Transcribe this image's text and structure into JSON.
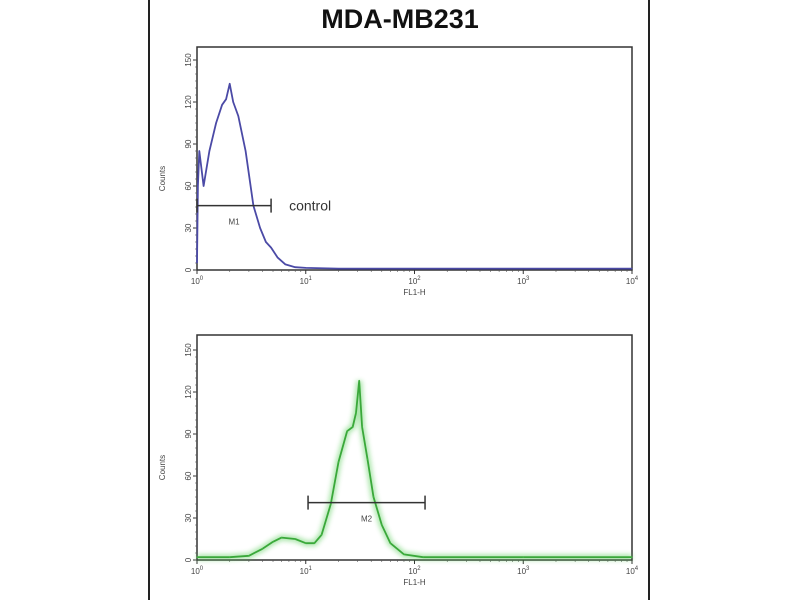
{
  "title": "MDA-MB231",
  "colors": {
    "control": "#4b4aa6",
    "sample": "#4cc94c",
    "axis": "#333333"
  },
  "chart_data": [
    {
      "type": "line",
      "xscale": "log",
      "xlim": [
        1,
        10000
      ],
      "ylim": [
        0,
        150
      ],
      "xlabel": "FL1-H",
      "ylabel": "Counts",
      "xticks": [
        "10^0",
        "10^1",
        "10^2",
        "10^3",
        "10^4"
      ],
      "yticks": [
        0,
        30,
        60,
        90,
        120,
        150
      ],
      "series": [
        {
          "name": "control",
          "color": "#4b4aa6",
          "points": [
            [
              1,
              5
            ],
            [
              1.02,
              60
            ],
            [
              1.05,
              85
            ],
            [
              1.15,
              60
            ],
            [
              1.3,
              85
            ],
            [
              1.5,
              105
            ],
            [
              1.7,
              118
            ],
            [
              1.85,
              122
            ],
            [
              2.0,
              133
            ],
            [
              2.15,
              120
            ],
            [
              2.4,
              110
            ],
            [
              2.8,
              85
            ],
            [
              3.3,
              46
            ],
            [
              3.8,
              30
            ],
            [
              4.3,
              20
            ],
            [
              4.8,
              16
            ],
            [
              5.5,
              9
            ],
            [
              6.5,
              4
            ],
            [
              8,
              2
            ],
            [
              10,
              1.5
            ],
            [
              20,
              1
            ],
            [
              100,
              1
            ],
            [
              1000,
              1
            ],
            [
              10000,
              1
            ]
          ]
        }
      ],
      "gate": {
        "label": "M1",
        "range": [
          1,
          4.8
        ],
        "level": 46
      },
      "annotation": "control"
    },
    {
      "type": "line",
      "xscale": "log",
      "xlim": [
        1,
        10000
      ],
      "ylim": [
        0,
        150
      ],
      "xlabel": "FL1-H",
      "ylabel": "Counts",
      "xticks": [
        "10^0",
        "10^1",
        "10^2",
        "10^3",
        "10^4"
      ],
      "yticks": [
        0,
        30,
        60,
        90,
        120,
        150
      ],
      "series": [
        {
          "color": "#4cc94c",
          "points": [
            [
              1,
              2
            ],
            [
              2,
              2
            ],
            [
              3,
              3
            ],
            [
              4,
              8
            ],
            [
              5,
              13
            ],
            [
              6,
              16
            ],
            [
              8,
              15
            ],
            [
              10,
              12
            ],
            [
              12,
              12
            ],
            [
              14,
              18
            ],
            [
              17,
              40
            ],
            [
              20,
              70
            ],
            [
              24,
              92
            ],
            [
              27,
              95
            ],
            [
              29,
              105
            ],
            [
              31,
              128
            ],
            [
              33,
              95
            ],
            [
              37,
              72
            ],
            [
              42,
              45
            ],
            [
              50,
              25
            ],
            [
              60,
              12
            ],
            [
              80,
              4
            ],
            [
              120,
              2
            ],
            [
              1000,
              2
            ],
            [
              10000,
              2
            ]
          ]
        }
      ],
      "gate": {
        "label": "M2",
        "range": [
          10.5,
          125
        ],
        "level": 41
      }
    }
  ]
}
